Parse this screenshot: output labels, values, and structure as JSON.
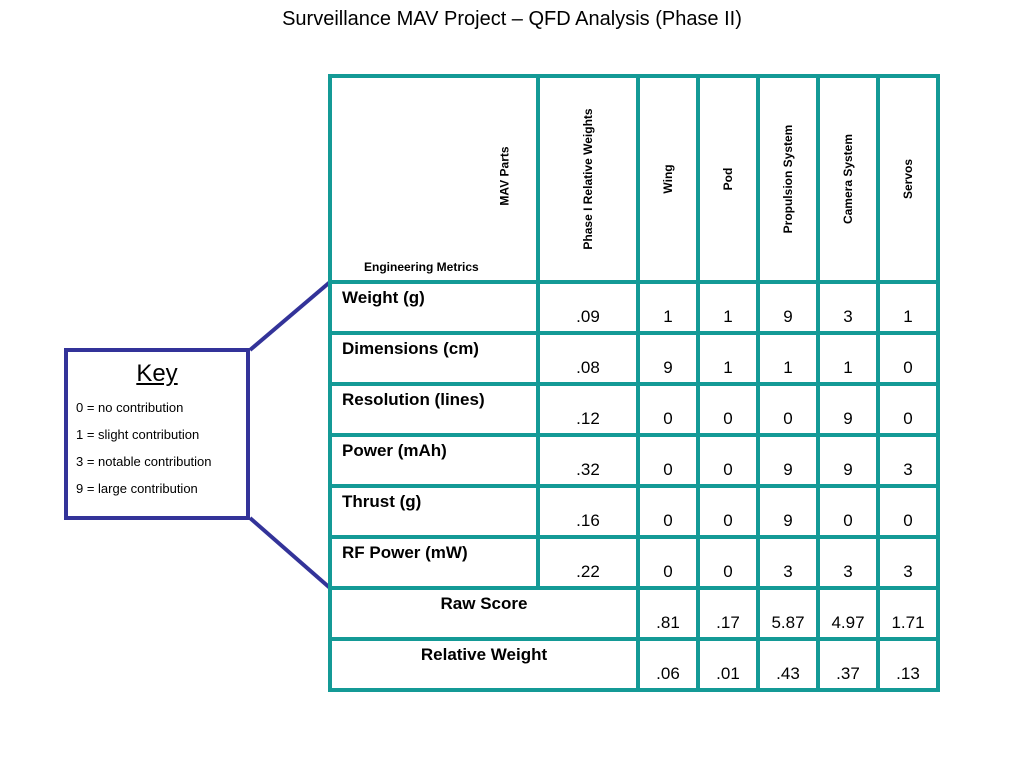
{
  "title": "Surveillance MAV Project – QFD Analysis (Phase II)",
  "key": {
    "heading": "Key",
    "items": [
      "0 = no contribution",
      "1 = slight contribution",
      "3 = notable contribution",
      "9 = large contribution"
    ]
  },
  "table": {
    "corner_top": "MAV Parts",
    "corner_bottom": "Engineering Metrics",
    "columns": [
      "Phase I Relative Weights",
      "Wing",
      "Pod",
      "Propulsion System",
      "Camera System",
      "Servos"
    ],
    "rows": [
      {
        "metric": "Weight (g)",
        "weight": ".09",
        "values": [
          "1",
          "1",
          "9",
          "3",
          "1"
        ]
      },
      {
        "metric": "Dimensions (cm)",
        "weight": ".08",
        "values": [
          "9",
          "1",
          "1",
          "1",
          "0"
        ]
      },
      {
        "metric": "Resolution (lines)",
        "weight": ".12",
        "values": [
          "0",
          "0",
          "0",
          "9",
          "0"
        ]
      },
      {
        "metric": "Power (mAh)",
        "weight": ".32",
        "values": [
          "0",
          "0",
          "9",
          "9",
          "3"
        ]
      },
      {
        "metric": "Thrust (g)",
        "weight": ".16",
        "values": [
          "0",
          "0",
          "9",
          "0",
          "0"
        ]
      },
      {
        "metric": "RF Power (mW)",
        "weight": ".22",
        "values": [
          "0",
          "0",
          "3",
          "3",
          "3"
        ]
      }
    ],
    "raw_score": {
      "label": "Raw Score",
      "values": [
        ".81",
        ".17",
        "5.87",
        "4.97",
        "1.71"
      ]
    },
    "relative_weight": {
      "label": "Relative Weight",
      "values": [
        ".06",
        ".01",
        ".43",
        ".37",
        ".13"
      ]
    }
  },
  "colors": {
    "outer_border": "#333399",
    "grid": "#149a96"
  }
}
